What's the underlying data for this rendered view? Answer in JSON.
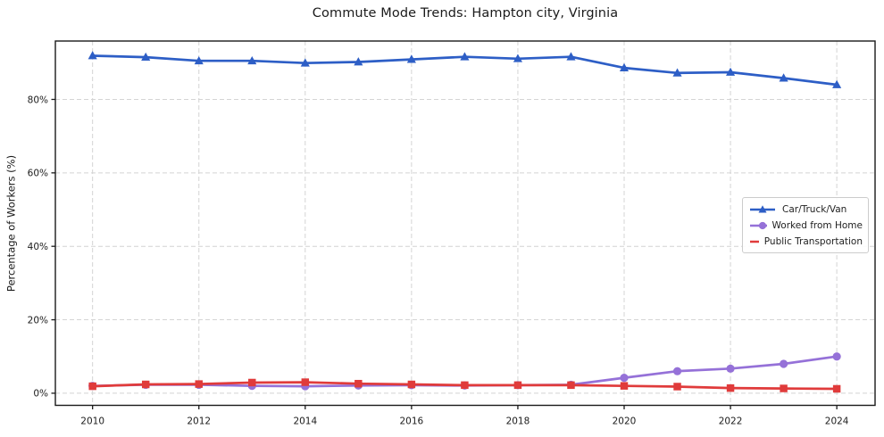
{
  "chart_data": {
    "type": "line",
    "title": "Commute Mode Trends: Hampton city, Virginia",
    "xlabel": "",
    "ylabel": "Percentage of Workers (%)",
    "x": [
      2010,
      2011,
      2012,
      2013,
      2014,
      2015,
      2016,
      2017,
      2018,
      2019,
      2020,
      2021,
      2022,
      2023,
      2024
    ],
    "series": [
      {
        "name": "Car/Truck/Van",
        "marker": "triangle",
        "color": "#2d5ec6",
        "values": [
          91.9,
          91.5,
          90.5,
          90.5,
          89.9,
          90.2,
          90.9,
          91.6,
          91.1,
          91.6,
          88.6,
          87.2,
          87.4,
          85.8,
          84.0
        ]
      },
      {
        "name": "Worked from Home",
        "marker": "circle",
        "color": "#9571d8",
        "values": [
          2.0,
          2.3,
          2.3,
          2.0,
          1.9,
          2.1,
          2.2,
          2.1,
          2.2,
          2.3,
          4.2,
          6.0,
          6.7,
          8.0,
          10.0
        ]
      },
      {
        "name": "Public Transportation",
        "marker": "square",
        "color": "#e03b3b",
        "values": [
          1.9,
          2.4,
          2.5,
          2.9,
          3.0,
          2.6,
          2.4,
          2.2,
          2.2,
          2.2,
          2.0,
          1.8,
          1.4,
          1.3,
          1.2
        ]
      }
    ],
    "x_ticks": [
      2010,
      2012,
      2014,
      2016,
      2018,
      2020,
      2022,
      2024
    ],
    "y_ticks": [
      0,
      20,
      40,
      60,
      80
    ],
    "y_tick_suffix": "%",
    "xlim": [
      2009.3,
      2024.72
    ],
    "ylim": [
      -3.3,
      95.9
    ],
    "grid": true,
    "grid_style": "dashed",
    "legend_position": "center-right"
  },
  "colors": {
    "spine": "#1a1a1a",
    "grid": "#d4d4d4",
    "tick_label": "#1b1b1b",
    "background": "#ffffff"
  }
}
